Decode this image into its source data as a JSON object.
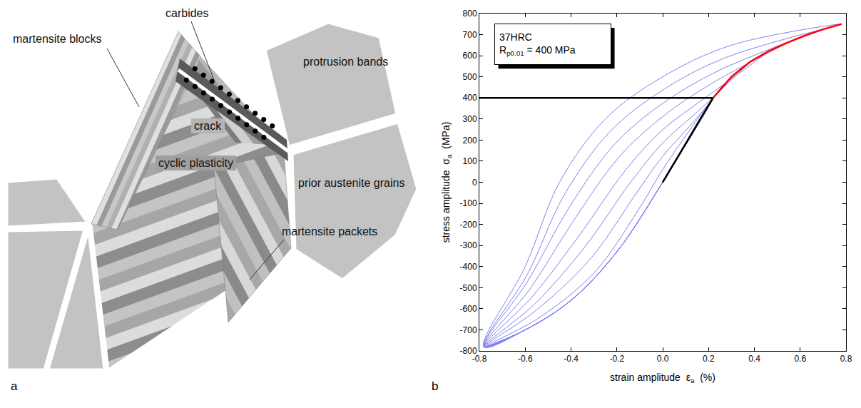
{
  "diagram": {
    "panel_label": "a",
    "labels": [
      "carbides",
      "martensite blocks",
      "crack",
      "cyclic plasticity",
      "protrusion bands",
      "prior austenite grains",
      "martensite packets"
    ]
  },
  "chart_data": {
    "type": "line",
    "panel_label": "b",
    "annotation": {
      "lines": [
        {
          "text": "37HRC"
        },
        {
          "text": "R",
          "sub": "p0.01",
          "after": " = 400 MPa"
        }
      ]
    },
    "xlabel": {
      "text": "strain amplitude  ε",
      "sub": "a",
      "after": "  (%)"
    },
    "ylabel": {
      "text": "stress amplitude  σ",
      "sub": "a",
      "after": "  (MPa)"
    },
    "xlim": [
      -0.8,
      0.8
    ],
    "xticks": [
      -0.8,
      -0.6,
      -0.4,
      -0.2,
      {
        "value": 0,
        "label": "0.0"
      },
      0.2,
      0.4,
      0.6,
      0.8
    ],
    "ylim": [
      -800,
      800
    ],
    "yticks": [
      -800,
      -700,
      -600,
      -500,
      -400,
      -300,
      -200,
      -100,
      0,
      100,
      200,
      300,
      400,
      500,
      600,
      700,
      800
    ],
    "grid": false,
    "series": [
      {
        "color": "#8080f0",
        "line_style": "spline",
        "x": [
          -0.78,
          -0.6,
          -0.4,
          -0.2,
          0,
          0.22,
          0.1,
          0,
          -0.1,
          -0.3,
          -0.55,
          -0.78
        ],
        "values": [
          -780,
          -700,
          -560,
          -330,
          0,
          400,
          220,
          60,
          -120,
          -430,
          -650,
          -780
        ]
      },
      {
        "color": "#8080f0",
        "line_style": "spline",
        "x": [
          -0.78,
          -0.6,
          -0.4,
          -0.2,
          0,
          0.22,
          0.3,
          0.13,
          0,
          -0.12,
          -0.32,
          -0.56,
          -0.78
        ],
        "values": [
          -780,
          -700,
          -560,
          -330,
          0,
          400,
          500,
          281,
          123,
          -60,
          -369,
          -614,
          -780
        ]
      },
      {
        "color": "#8080f0",
        "line_style": "spline",
        "x": [
          -0.78,
          -0.6,
          -0.4,
          -0.2,
          0,
          0.22,
          0.3,
          0.38,
          0.16,
          0,
          -0.14,
          -0.34,
          -0.56,
          -0.78
        ],
        "values": [
          -780,
          -700,
          -560,
          -330,
          0,
          400,
          500,
          570,
          343,
          186,
          0,
          -307,
          -579,
          -780
        ]
      },
      {
        "color": "#8080f0",
        "line_style": "spline",
        "x": [
          -0.78,
          -0.6,
          -0.4,
          -0.2,
          0,
          0.22,
          0.3,
          0.38,
          0.46,
          0.19,
          0,
          -0.16,
          -0.36,
          -0.57,
          -0.78
        ],
        "values": [
          -780,
          -700,
          -560,
          -330,
          0,
          400,
          500,
          570,
          620,
          404,
          249,
          60,
          -246,
          -543,
          -780
        ]
      },
      {
        "color": "#8080f0",
        "line_style": "spline",
        "x": [
          -0.78,
          -0.6,
          -0.4,
          -0.2,
          0,
          0.22,
          0.3,
          0.38,
          0.46,
          0.54,
          0.21,
          0,
          -0.19,
          -0.39,
          -0.58,
          -0.78
        ],
        "values": [
          -780,
          -700,
          -560,
          -330,
          0,
          400,
          500,
          570,
          620,
          660,
          466,
          311,
          120,
          -184,
          -507,
          -780
        ]
      },
      {
        "color": "#8080f0",
        "line_style": "spline",
        "x": [
          -0.78,
          -0.6,
          -0.4,
          -0.2,
          0,
          0.22,
          0.3,
          0.38,
          0.46,
          0.54,
          0.62,
          0.24,
          0,
          -0.21,
          -0.41,
          -0.59,
          -0.78
        ],
        "values": [
          -780,
          -700,
          -560,
          -330,
          0,
          400,
          500,
          570,
          620,
          660,
          695,
          527,
          374,
          180,
          -123,
          -471,
          -780
        ]
      },
      {
        "color": "#8080f0",
        "line_style": "spline",
        "x": [
          -0.78,
          -0.6,
          -0.4,
          -0.2,
          0,
          0.22,
          0.3,
          0.38,
          0.46,
          0.54,
          0.62,
          0.7,
          0.27,
          0,
          -0.23,
          -0.43,
          -0.59,
          -0.78
        ],
        "values": [
          -780,
          -700,
          -560,
          -330,
          0,
          400,
          500,
          570,
          620,
          660,
          695,
          725,
          589,
          437,
          240,
          -61,
          -436,
          -780
        ]
      },
      {
        "color": "#8080f0",
        "line_style": "spline",
        "x": [
          -0.78,
          -0.6,
          -0.4,
          -0.2,
          0,
          0.22,
          0.3,
          0.38,
          0.46,
          0.54,
          0.62,
          0.7,
          0.78,
          0.3,
          0,
          -0.25,
          -0.45,
          -0.6,
          -0.78
        ],
        "values": [
          -780,
          -700,
          -560,
          -330,
          0,
          400,
          500,
          570,
          620,
          660,
          695,
          725,
          750,
          650,
          500,
          300,
          0,
          -400,
          -780
        ]
      },
      {
        "color": "#000000",
        "line_style": "solid",
        "x": [
          -0.8,
          0.22,
          0
        ],
        "values": [
          400,
          400,
          0
        ]
      },
      {
        "color": "#ff0000",
        "line_style": "solid",
        "x": [
          0.22,
          0.3,
          0.38,
          0.46,
          0.54,
          0.62,
          0.7,
          0.78
        ],
        "values": [
          400,
          500,
          570,
          620,
          660,
          695,
          725,
          750
        ]
      }
    ]
  }
}
